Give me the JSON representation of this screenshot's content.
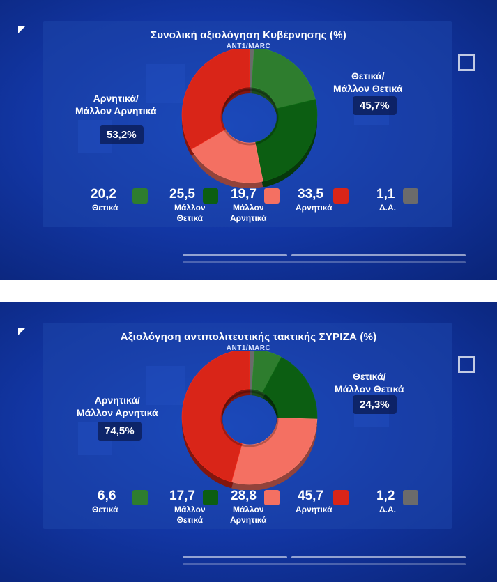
{
  "colors": {
    "positive": "#2e7d2e",
    "rather_positive": "#0c5e12",
    "rather_negative": "#f47062",
    "negative": "#d92518",
    "dk": "#6b6b6b"
  },
  "chart_data": [
    {
      "type": "pie",
      "title": "Συνολική αξιολόγηση Κυβέρνησης (%)",
      "source": "ΑΝΤ1/MARC",
      "negative_group_label_line1": "Αρνητικά/",
      "negative_group_label_line2": "Μάλλον Αρνητικά",
      "negative_group_pct": "53,2%",
      "positive_group_label_line1": "Θετικά/",
      "positive_group_label_line2": "Μάλλον Θετικά",
      "positive_group_pct": "45,7%",
      "slices": [
        {
          "name": "Θετικά",
          "label": "Θετικά",
          "label2": "",
          "value": 20.2,
          "display": "20,2",
          "color": "#2e7d2e"
        },
        {
          "name": "Μάλλον Θετικά",
          "label": "Μάλλον",
          "label2": "Θετικά",
          "value": 25.5,
          "display": "25,5",
          "color": "#0c5e12"
        },
        {
          "name": "Μάλλον Αρνητικά",
          "label": "Μάλλον",
          "label2": "Αρνητικά",
          "value": 19.7,
          "display": "19,7",
          "color": "#f47062"
        },
        {
          "name": "Αρνητικά",
          "label": "Αρνητικά",
          "label2": "",
          "value": 33.5,
          "display": "33,5",
          "color": "#d92518"
        },
        {
          "name": "Δ.Α.",
          "label": "Δ.Α.",
          "label2": "",
          "value": 1.1,
          "display": "1,1",
          "color": "#6b6b6b"
        }
      ]
    },
    {
      "type": "pie",
      "title": "Αξιολόγηση αντιπολιτευτικής τακτικής ΣΥΡΙΖΑ (%)",
      "source": "ΑΝΤ1/MARC",
      "negative_group_label_line1": "Αρνητικά/",
      "negative_group_label_line2": "Μάλλον Αρνητικά",
      "negative_group_pct": "74,5%",
      "positive_group_label_line1": "Θετικά/",
      "positive_group_label_line2": "Μάλλον Θετικά",
      "positive_group_pct": "24,3%",
      "slices": [
        {
          "name": "Θετικά",
          "label": "Θετικά",
          "label2": "",
          "value": 6.6,
          "display": "6,6",
          "color": "#2e7d2e"
        },
        {
          "name": "Μάλλον Θετικά",
          "label": "Μάλλον",
          "label2": "Θετικά",
          "value": 17.7,
          "display": "17,7",
          "color": "#0c5e12"
        },
        {
          "name": "Μάλλον Αρνητικά",
          "label": "Μάλλον",
          "label2": "Αρνητικά",
          "value": 28.8,
          "display": "28,8",
          "color": "#f47062"
        },
        {
          "name": "Αρνητικά",
          "label": "Αρνητικά",
          "label2": "",
          "value": 45.7,
          "display": "45,7",
          "color": "#d92518"
        },
        {
          "name": "Δ.Α.",
          "label": "Δ.Α.",
          "label2": "",
          "value": 1.2,
          "display": "1,2",
          "color": "#6b6b6b"
        }
      ]
    }
  ]
}
